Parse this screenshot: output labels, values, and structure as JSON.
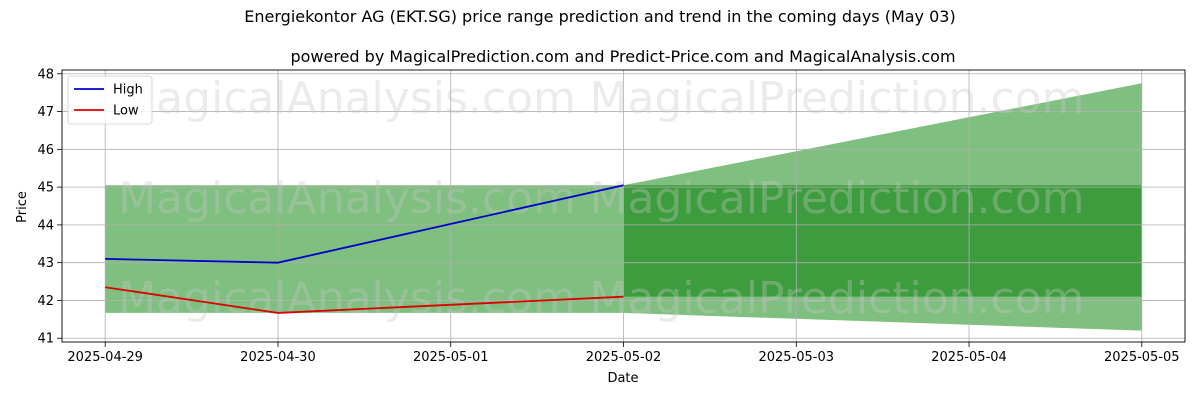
{
  "chart_data": {
    "type": "line",
    "title": "Energiekontor AG (EKT.SG) price range prediction and trend in the coming days (May 03)",
    "subtitle": "powered by MagicalPrediction.com and Predict-Price.com and MagicalAnalysis.com",
    "xlabel": "Date",
    "ylabel": "Price",
    "x_ticks": [
      "2025-04-29",
      "2025-04-30",
      "2025-05-01",
      "2025-05-02",
      "2025-05-03",
      "2025-05-04",
      "2025-05-05"
    ],
    "y_ticks": [
      41,
      42,
      43,
      44,
      45,
      46,
      47,
      48
    ],
    "xlim": [
      "2025-04-28T18:00",
      "2025-05-05T06:00"
    ],
    "ylim": [
      40.9,
      48.1
    ],
    "grid": true,
    "legend_position": "top-left",
    "series": [
      {
        "name": "High",
        "color": "#0000cc",
        "points": [
          [
            "2025-04-29",
            43.1
          ],
          [
            "2025-04-30",
            43.0
          ],
          [
            "2025-05-02",
            45.05
          ]
        ]
      },
      {
        "name": "Low",
        "color": "#dd0000",
        "points": [
          [
            "2025-04-29",
            42.35
          ],
          [
            "2025-04-30",
            41.67
          ],
          [
            "2025-05-02",
            42.1
          ]
        ]
      }
    ],
    "bands": [
      {
        "role": "historical-range",
        "color": "#7fbf7f",
        "x_start": "2025-04-29",
        "x_end": "2025-05-02",
        "low": 41.67,
        "high": 45.05
      },
      {
        "role": "prediction-range",
        "color": "#7fbf7f",
        "x": [
          "2025-05-02",
          "2025-05-05"
        ],
        "low": [
          41.67,
          41.2
        ],
        "high": [
          45.05,
          47.75
        ]
      },
      {
        "role": "prediction-core",
        "color": "#3d9c3d",
        "x_start": "2025-05-02",
        "x_end": "2025-05-05",
        "low": 42.1,
        "high": 45.05
      }
    ],
    "watermarks": [
      "MagicalAnalysis.com",
      "MagicalPrediction.com"
    ]
  }
}
